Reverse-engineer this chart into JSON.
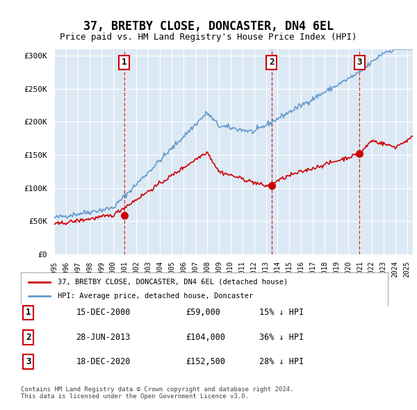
{
  "title": "37, BRETBY CLOSE, DONCASTER, DN4 6EL",
  "subtitle": "Price paid vs. HM Land Registry's House Price Index (HPI)",
  "ylabel_ticks": [
    "£0",
    "£50K",
    "£100K",
    "£150K",
    "£200K",
    "£250K",
    "£300K"
  ],
  "ytick_values": [
    0,
    50000,
    100000,
    150000,
    200000,
    250000,
    300000
  ],
  "ylim": [
    0,
    310000
  ],
  "xlim_start": 1995.0,
  "xlim_end": 2025.5,
  "sale_dates": [
    2000.96,
    2013.49,
    2020.96
  ],
  "sale_prices": [
    59000,
    104000,
    152500
  ],
  "sale_labels": [
    "1",
    "2",
    "3"
  ],
  "hpi_color": "#6699cc",
  "price_color": "#cc0000",
  "sale_marker_color": "#cc0000",
  "vline_color": "#cc0000",
  "background_color": "#dce9f5",
  "grid_color": "#ffffff",
  "legend_label_red": "37, BRETBY CLOSE, DONCASTER, DN4 6EL (detached house)",
  "legend_label_blue": "HPI: Average price, detached house, Doncaster",
  "table_rows": [
    {
      "label": "1",
      "date": "15-DEC-2000",
      "price": "£59,000",
      "hpi": "15% ↓ HPI"
    },
    {
      "label": "2",
      "date": "28-JUN-2013",
      "price": "£104,000",
      "hpi": "36% ↓ HPI"
    },
    {
      "label": "3",
      "date": "18-DEC-2020",
      "price": "£152,500",
      "hpi": "28% ↓ HPI"
    }
  ],
  "footer": "Contains HM Land Registry data © Crown copyright and database right 2024.\nThis data is licensed under the Open Government Licence v3.0.",
  "xtick_years": [
    1995,
    1996,
    1997,
    1998,
    1999,
    2000,
    2001,
    2002,
    2003,
    2004,
    2005,
    2006,
    2007,
    2008,
    2009,
    2010,
    2011,
    2012,
    2013,
    2014,
    2015,
    2016,
    2017,
    2018,
    2019,
    2020,
    2021,
    2022,
    2023,
    2024,
    2025
  ]
}
